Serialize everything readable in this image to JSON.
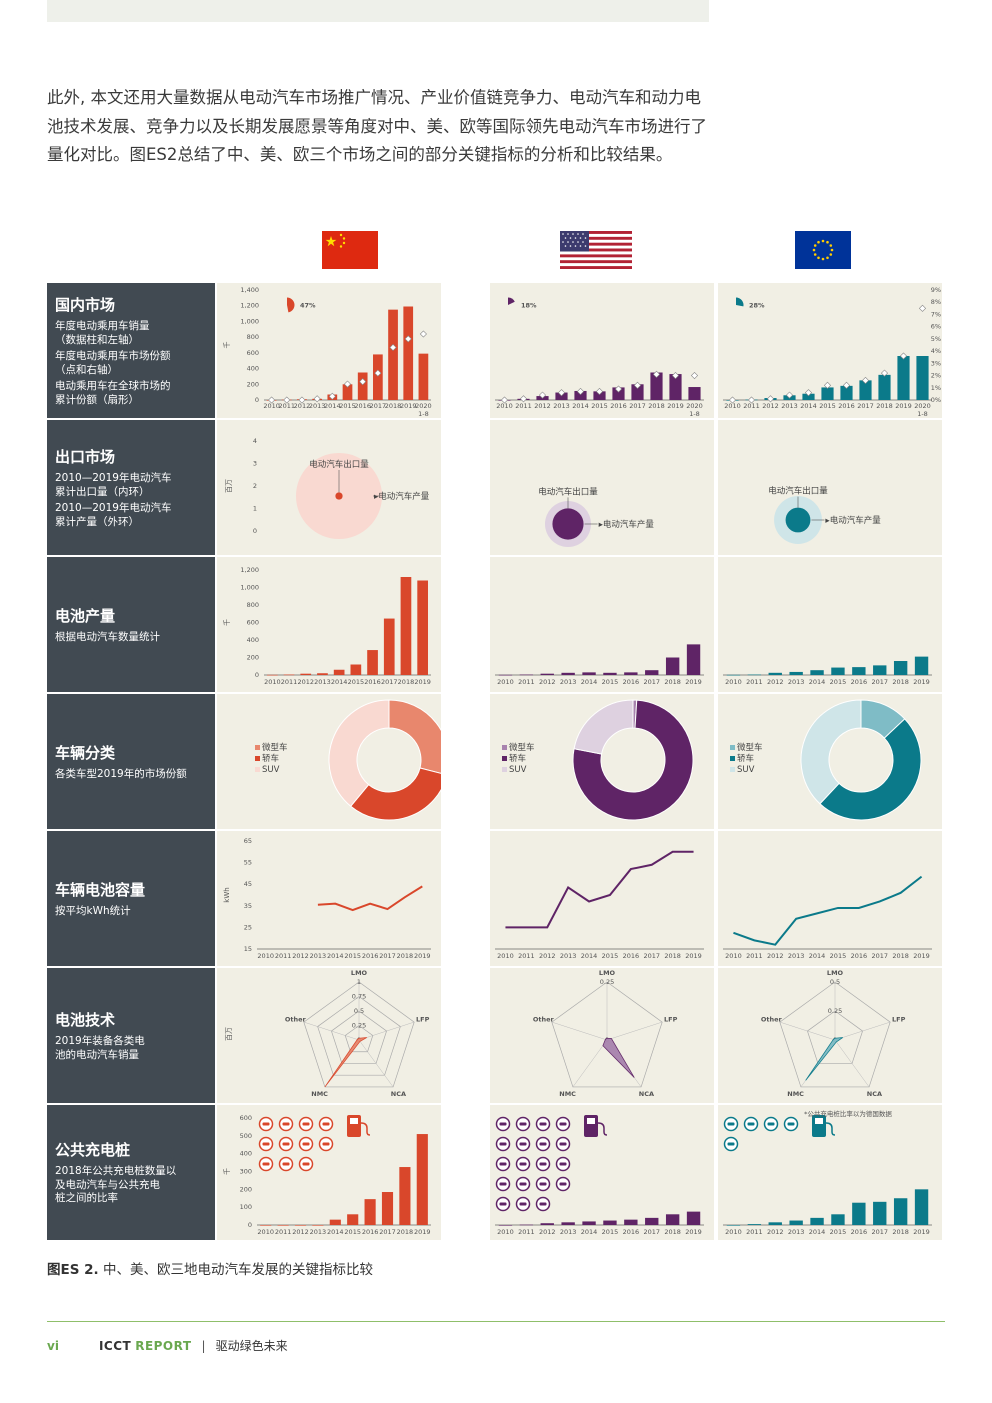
{
  "intro_text": "此外, 本文还用大量数据从电动汽车市场推广情况、产业价值链竞争力、电动汽车和动力电池技术发展、竞争力以及长期发展愿景等角度对中、美、欧等国际领先电动汽车市场进行了量化对比。图ES2总结了中、美、欧三个市场之间的部分关键指标的分析和比较结果。",
  "colors": {
    "china": "#d9472b",
    "us": "#5f2466",
    "eu": "#0b7a8a",
    "label_bg": "#414a52",
    "cell_bg": "#f1efe4",
    "accent": "#6aa84f"
  },
  "flags": [
    {
      "name": "china-flag-icon"
    },
    {
      "name": "us-flag-icon"
    },
    {
      "name": "eu-flag-icon"
    }
  ],
  "rows": [
    {
      "key": "domestic",
      "title": "国内市场",
      "desc": [
        "年度电动乘用车销量\n（数据柱和左轴）",
        "年度电动乘用车市场份额\n（点和右轴）",
        "电动乘用车在全球市场的\n累计份额（扇形）"
      ]
    },
    {
      "key": "export",
      "title": "出口市场",
      "desc": [
        "2010—2019年电动汽车\n累计出口量（内环）",
        "2010—2019年电动汽车\n累计产量（外环）"
      ]
    },
    {
      "key": "battery_prod",
      "title": "电池产量",
      "desc": [
        "根据电动汽车数量统计"
      ]
    },
    {
      "key": "segments",
      "title": "车辆分类",
      "desc": [
        "各类车型2019年的市场份额"
      ]
    },
    {
      "key": "capacity",
      "title": "车辆电池容量",
      "desc": [
        "按平均kWh统计"
      ]
    },
    {
      "key": "chemistry",
      "title": "电池技术",
      "desc": [
        "2019年装备各类电\n池的电动汽车销量"
      ]
    },
    {
      "key": "charging",
      "title": "公共充电桩",
      "desc": [
        "2018年公共充电桩数量以\n及电动汽车与公共充电\n桩之间的比率"
      ]
    }
  ],
  "years": [
    "2010",
    "2011",
    "2012",
    "2013",
    "2014",
    "2015",
    "2016",
    "2017",
    "2018",
    "2019"
  ],
  "years_with_2020": [
    "2010",
    "2011",
    "2012",
    "2013",
    "2014",
    "2015",
    "2016",
    "2017",
    "2018",
    "2019",
    "2020"
  ],
  "year_2020_note": "1-8",
  "chart_data": [
    {
      "type": "bar",
      "id": "domestic",
      "title": "国内市场",
      "categories": [
        "2010",
        "2011",
        "2012",
        "2013",
        "2014",
        "2015",
        "2016",
        "2017",
        "2018",
        "2019",
        "2020 1-8"
      ],
      "ylabel": "千",
      "ylim": [
        0,
        1400
      ],
      "yticks": [
        0,
        200,
        400,
        600,
        800,
        1000,
        1200,
        1400
      ],
      "right_ylim": [
        0,
        0.09
      ],
      "right_yticks": [
        "0%",
        "1%",
        "2%",
        "3%",
        "4%",
        "5%",
        "6%",
        "7%",
        "8%",
        "9%"
      ],
      "series": [
        {
          "name": "China",
          "values": [
            0,
            5,
            10,
            15,
            70,
            200,
            350,
            580,
            1150,
            1190,
            590
          ],
          "share": [
            0.0,
            0.0,
            0.0,
            0.001,
            0.003,
            0.013,
            0.015,
            0.022,
            0.043,
            0.05,
            0.054
          ],
          "global_cumulative_share": "47%"
        },
        {
          "name": "US",
          "values": [
            0,
            15,
            50,
            95,
            115,
            110,
            160,
            200,
            350,
            330,
            165
          ],
          "share": [
            0.0,
            0.001,
            0.004,
            0.006,
            0.007,
            0.007,
            0.009,
            0.012,
            0.021,
            0.02,
            0.02
          ],
          "global_cumulative_share": "18%"
        },
        {
          "name": "EU",
          "values": [
            0,
            5,
            25,
            60,
            80,
            160,
            180,
            250,
            320,
            560,
            560
          ],
          "share": [
            0.0,
            0.0,
            0.001,
            0.004,
            0.006,
            0.012,
            0.012,
            0.016,
            0.022,
            0.036,
            0.075
          ],
          "global_cumulative_share": "28%"
        }
      ]
    },
    {
      "type": "bubble",
      "id": "export",
      "title": "出口市场",
      "ylabel": "百万",
      "ylim": [
        0,
        4
      ],
      "yticks": [
        0,
        1,
        2,
        3,
        4
      ],
      "inner_label": "电动汽车出口量",
      "outer_label": "电动汽车产量",
      "series": [
        {
          "name": "China",
          "exports": 0.03,
          "production": 4.2
        },
        {
          "name": "US",
          "exports": 0.55,
          "production": 1.2
        },
        {
          "name": "EU",
          "exports": 0.35,
          "production": 1.3
        }
      ]
    },
    {
      "type": "bar",
      "id": "battery_prod",
      "title": "电池产量",
      "categories": [
        "2010",
        "2011",
        "2012",
        "2013",
        "2014",
        "2015",
        "2016",
        "2017",
        "2018",
        "2019"
      ],
      "ylabel": "千",
      "ylim": [
        0,
        1200
      ],
      "yticks": [
        0,
        200,
        400,
        600,
        800,
        1000,
        1200
      ],
      "series": [
        {
          "name": "China",
          "values": [
            2,
            5,
            15,
            20,
            60,
            120,
            285,
            645,
            1120,
            1080
          ]
        },
        {
          "name": "US",
          "values": [
            2,
            5,
            15,
            25,
            30,
            25,
            30,
            55,
            200,
            350
          ]
        },
        {
          "name": "EU",
          "values": [
            2,
            5,
            25,
            35,
            55,
            85,
            90,
            110,
            160,
            210
          ]
        }
      ]
    },
    {
      "type": "pie",
      "id": "segments",
      "title": "车辆分类",
      "categories": [
        "微型车",
        "轿车",
        "SUV"
      ],
      "series": [
        {
          "name": "China",
          "values": [
            0.29,
            0.32,
            0.39
          ]
        },
        {
          "name": "US",
          "values": [
            0.01,
            0.77,
            0.22
          ]
        },
        {
          "name": "EU",
          "values": [
            0.13,
            0.49,
            0.38
          ]
        }
      ]
    },
    {
      "type": "line",
      "id": "capacity",
      "title": "车辆电池容量",
      "categories": [
        "2010",
        "2011",
        "2012",
        "2013",
        "2014",
        "2015",
        "2016",
        "2017",
        "2018",
        "2019"
      ],
      "ylabel": "kWh",
      "ylim": [
        15,
        65
      ],
      "yticks": [
        15,
        25,
        35,
        45,
        55,
        65
      ],
      "series": [
        {
          "name": "China",
          "values": [
            null,
            null,
            null,
            35.5,
            36,
            33,
            36,
            33.5,
            39,
            44
          ]
        },
        {
          "name": "US",
          "values": [
            25,
            25,
            25,
            43.5,
            37,
            40,
            52,
            54,
            60,
            60
          ]
        },
        {
          "name": "EU",
          "values": [
            22.5,
            19,
            17,
            29,
            31.5,
            34,
            34,
            37,
            41,
            48.5
          ]
        }
      ]
    },
    {
      "type": "radar",
      "id": "chemistry",
      "title": "电池技术",
      "ylabel": "百万",
      "axes": [
        "LMO",
        "LFP",
        "NCA",
        "NMC",
        "Other"
      ],
      "series": [
        {
          "name": "China",
          "ticks": [
            "0",
            "0.25",
            "0.5",
            "0.75",
            "1"
          ],
          "max": 1,
          "values": [
            0.02,
            0.14,
            0.02,
            1.0,
            0.01
          ]
        },
        {
          "name": "US",
          "ticks": [
            "0",
            "0.25"
          ],
          "max": 0.25,
          "values": [
            0.005,
            0.02,
            0.2,
            0.03,
            0.005
          ]
        },
        {
          "name": "EU",
          "ticks": [
            "0",
            "0.25",
            "0.5"
          ],
          "max": 0.5,
          "values": [
            0.01,
            0.07,
            0.02,
            0.43,
            0.01
          ]
        }
      ]
    },
    {
      "type": "bar",
      "id": "charging",
      "title": "公共充电桩",
      "categories": [
        "2010",
        "2011",
        "2012",
        "2013",
        "2014",
        "2015",
        "2016",
        "2017",
        "2018",
        "2019"
      ],
      "ylabel": "千",
      "ylim": [
        0,
        600
      ],
      "yticks": [
        0,
        100,
        200,
        300,
        400,
        500,
        600
      ],
      "note": "*公共充电桩比率以为德国数据",
      "series": [
        {
          "name": "China",
          "values": [
            0,
            0,
            0,
            0,
            30,
            60,
            145,
            185,
            325,
            510
          ],
          "ev_per_charger_icons": 11
        },
        {
          "name": "US",
          "values": [
            0,
            2,
            10,
            15,
            20,
            25,
            30,
            40,
            60,
            75
          ],
          "ev_per_charger_icons": 19
        },
        {
          "name": "EU",
          "values": [
            0,
            5,
            15,
            25,
            40,
            60,
            125,
            130,
            150,
            200
          ],
          "ev_per_charger_icons": 5
        }
      ]
    }
  ],
  "caption": {
    "label": "图ES 2.",
    "text": "中、美、欧三地电动汽车发展的关键指标比较"
  },
  "footer": {
    "page": "vi",
    "brand": "ICCT",
    "brand2": "REPORT",
    "separator": "|",
    "title": "驱动绿色未来"
  }
}
